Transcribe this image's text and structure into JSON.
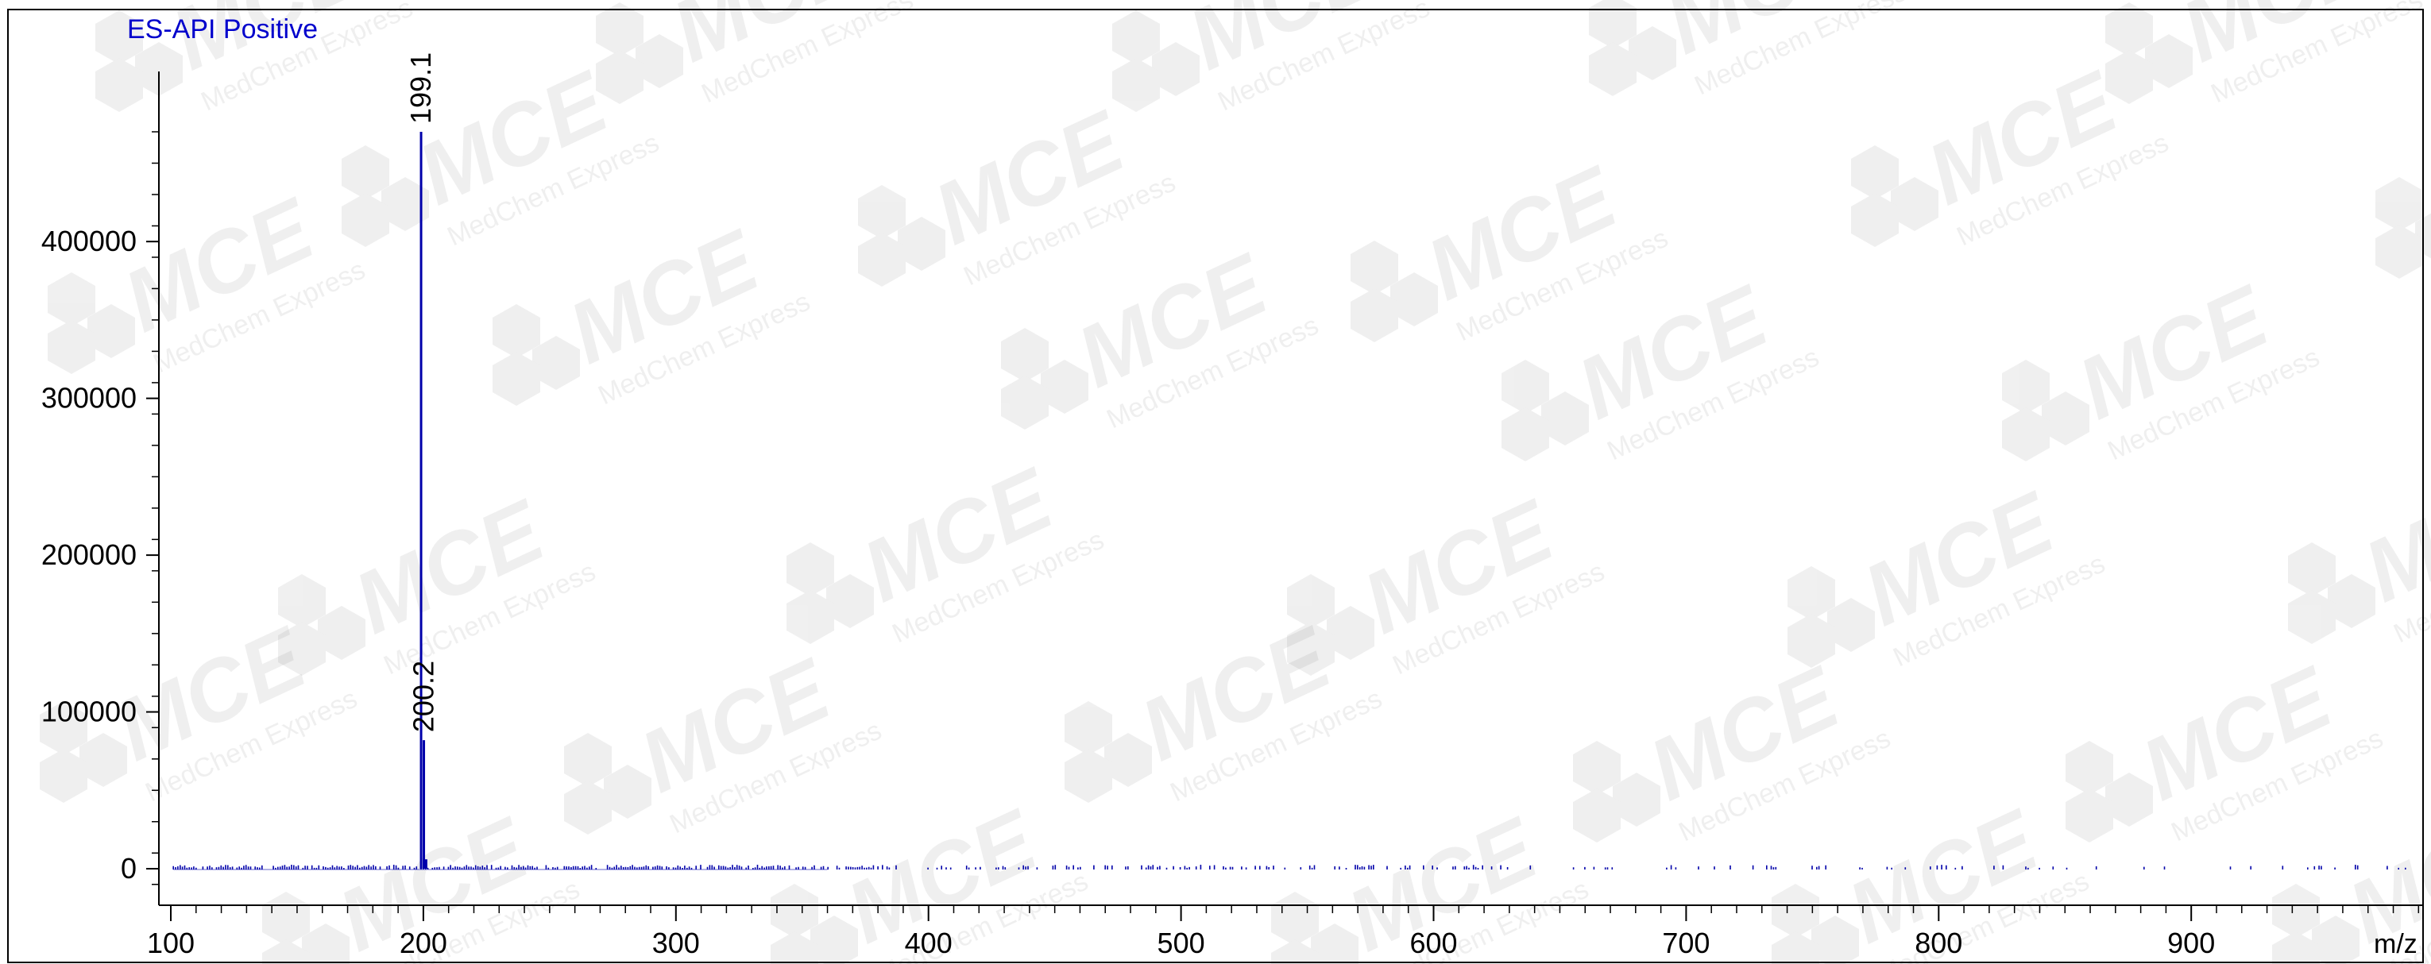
{
  "chart_data": {
    "type": "line",
    "title": "ES-API Positive",
    "xlabel": "m/z",
    "ylabel": "",
    "xlim": [
      100,
      1000
    ],
    "ylim": [
      -15000,
      500000
    ],
    "x_ticks": [
      100,
      200,
      300,
      400,
      500,
      600,
      700,
      800,
      900
    ],
    "y_ticks": [
      0,
      100000,
      200000,
      300000,
      400000
    ],
    "grid": false,
    "colors": {
      "series": "#0000aa",
      "title": "#0000cc",
      "axis": "#000000"
    },
    "series": [
      {
        "peaks": [
          {
            "x": 199.1,
            "y": 470000,
            "label": "199.1"
          },
          {
            "x": 200.2,
            "y": 82000,
            "label": "200.2"
          },
          {
            "x": 201.1,
            "y": 6000,
            "label": ""
          }
        ]
      }
    ],
    "watermark": {
      "text": "MCE",
      "subtext": "MedChem Express"
    }
  }
}
